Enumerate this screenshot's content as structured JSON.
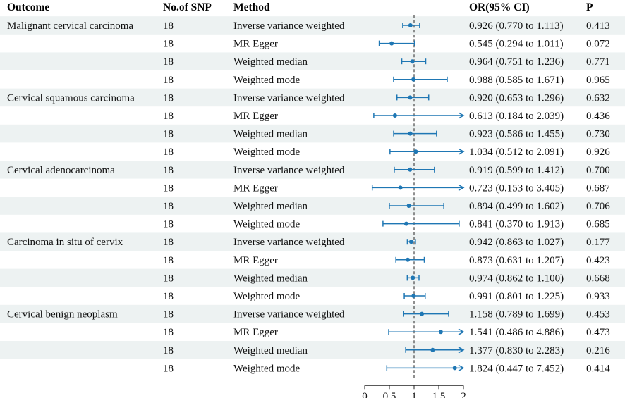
{
  "header": {
    "outcome": "Outcome",
    "nsnp": "No.of SNP",
    "method": "Method",
    "or_ci": "OR(95% CI)",
    "p": "P"
  },
  "colors": {
    "stripe": "#edf2f2",
    "marker": "#1f77b4",
    "ref_line": "#555555",
    "text": "#111111"
  },
  "chart_data": {
    "type": "forest",
    "null_value": 1,
    "xlim": [
      0,
      2
    ],
    "x_ticks": [
      {
        "value": 0,
        "label": "0"
      },
      {
        "value": 0.5,
        "label": "0.5"
      },
      {
        "value": 1,
        "label": "1"
      },
      {
        "value": 1.5,
        "label": "1.5"
      },
      {
        "value": 2,
        "label": "2"
      }
    ],
    "rows": [
      {
        "outcome": "Malignant cervical carcinoma",
        "nsnp": "18",
        "method": "Inverse variance weighted",
        "or": 0.926,
        "lower": 0.77,
        "upper": 1.113,
        "or_ci": "0.926 (0.770 to 1.113)",
        "p": "0.413"
      },
      {
        "outcome": "",
        "nsnp": "18",
        "method": "MR Egger",
        "or": 0.545,
        "lower": 0.294,
        "upper": 1.011,
        "or_ci": "0.545 (0.294 to 1.011)",
        "p": "0.072"
      },
      {
        "outcome": "",
        "nsnp": "18",
        "method": "Weighted median",
        "or": 0.964,
        "lower": 0.751,
        "upper": 1.236,
        "or_ci": "0.964 (0.751 to 1.236)",
        "p": "0.771"
      },
      {
        "outcome": "",
        "nsnp": "18",
        "method": "Weighted mode",
        "or": 0.988,
        "lower": 0.585,
        "upper": 1.671,
        "or_ci": "0.988 (0.585 to 1.671)",
        "p": "0.965"
      },
      {
        "outcome": "Cervical squamous carcinoma",
        "nsnp": "18",
        "method": "Inverse variance weighted",
        "or": 0.92,
        "lower": 0.653,
        "upper": 1.296,
        "or_ci": "0.920 (0.653 to 1.296)",
        "p": "0.632"
      },
      {
        "outcome": "",
        "nsnp": "18",
        "method": "MR Egger",
        "or": 0.613,
        "lower": 0.184,
        "upper": 2.039,
        "or_ci": "0.613 (0.184 to 2.039)",
        "p": "0.436"
      },
      {
        "outcome": "",
        "nsnp": "18",
        "method": "Weighted median",
        "or": 0.923,
        "lower": 0.586,
        "upper": 1.455,
        "or_ci": "0.923 (0.586 to 1.455)",
        "p": "0.730"
      },
      {
        "outcome": "",
        "nsnp": "18",
        "method": "Weighted mode",
        "or": 1.034,
        "lower": 0.512,
        "upper": 2.091,
        "or_ci": "1.034 (0.512 to 2.091)",
        "p": "0.926"
      },
      {
        "outcome": "Cervical adenocarcinoma",
        "nsnp": "18",
        "method": "Inverse variance weighted",
        "or": 0.919,
        "lower": 0.599,
        "upper": 1.412,
        "or_ci": "0.919 (0.599 to 1.412)",
        "p": "0.700"
      },
      {
        "outcome": "",
        "nsnp": "18",
        "method": "MR Egger",
        "or": 0.723,
        "lower": 0.153,
        "upper": 3.405,
        "or_ci": "0.723 (0.153 to 3.405)",
        "p": "0.687"
      },
      {
        "outcome": "",
        "nsnp": "18",
        "method": "Weighted median",
        "or": 0.894,
        "lower": 0.499,
        "upper": 1.602,
        "or_ci": "0.894 (0.499 to 1.602)",
        "p": "0.706"
      },
      {
        "outcome": "",
        "nsnp": "18",
        "method": "Weighted mode",
        "or": 0.841,
        "lower": 0.37,
        "upper": 1.913,
        "or_ci": "0.841 (0.370 to 1.913)",
        "p": "0.685"
      },
      {
        "outcome": "Carcinoma in situ of cervix",
        "nsnp": "18",
        "method": "Inverse variance weighted",
        "or": 0.942,
        "lower": 0.863,
        "upper": 1.027,
        "or_ci": "0.942 (0.863 to 1.027)",
        "p": "0.177"
      },
      {
        "outcome": "",
        "nsnp": "18",
        "method": "MR Egger",
        "or": 0.873,
        "lower": 0.631,
        "upper": 1.207,
        "or_ci": "0.873 (0.631 to 1.207)",
        "p": "0.423"
      },
      {
        "outcome": "",
        "nsnp": "18",
        "method": "Weighted median",
        "or": 0.974,
        "lower": 0.862,
        "upper": 1.1,
        "or_ci": "0.974 (0.862 to 1.100)",
        "p": "0.668"
      },
      {
        "outcome": "",
        "nsnp": "18",
        "method": "Weighted mode",
        "or": 0.991,
        "lower": 0.801,
        "upper": 1.225,
        "or_ci": "0.991 (0.801 to 1.225)",
        "p": "0.933"
      },
      {
        "outcome": "Cervical benign neoplasm",
        "nsnp": "18",
        "method": "Inverse variance weighted",
        "or": 1.158,
        "lower": 0.789,
        "upper": 1.699,
        "or_ci": "1.158 (0.789 to 1.699)",
        "p": "0.453"
      },
      {
        "outcome": "",
        "nsnp": "18",
        "method": "MR Egger",
        "or": 1.541,
        "lower": 0.486,
        "upper": 4.886,
        "or_ci": "1.541 (0.486 to 4.886)",
        "p": "0.473"
      },
      {
        "outcome": "",
        "nsnp": "18",
        "method": "Weighted median",
        "or": 1.377,
        "lower": 0.83,
        "upper": 2.283,
        "or_ci": "1.377 (0.830 to 2.283)",
        "p": "0.216"
      },
      {
        "outcome": "",
        "nsnp": "18",
        "method": "Weighted mode",
        "or": 1.824,
        "lower": 0.447,
        "upper": 7.452,
        "or_ci": "1.824 (0.447 to 7.452)",
        "p": "0.414"
      }
    ]
  }
}
